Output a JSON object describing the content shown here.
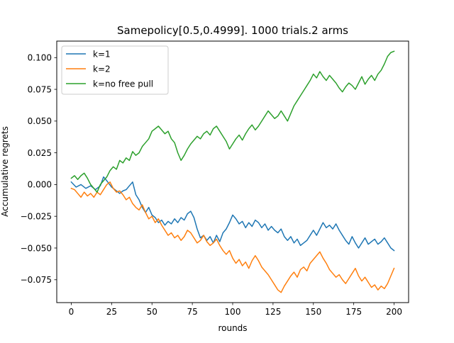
{
  "chart_data": {
    "type": "line",
    "title": "Samepolicy[0.5,0.4999]. 1000 trials.2 arms",
    "xlabel": "rounds",
    "ylabel": "Accumulative regrets",
    "xlim": [
      -9,
      209
    ],
    "ylim": [
      -0.093,
      0.113
    ],
    "xticks": [
      0,
      25,
      50,
      75,
      100,
      125,
      150,
      175,
      200
    ],
    "xtick_labels": [
      "0",
      "25",
      "50",
      "75",
      "100",
      "125",
      "150",
      "175",
      "200"
    ],
    "yticks": [
      -0.075,
      -0.05,
      -0.025,
      0.0,
      0.025,
      0.05,
      0.075,
      0.1
    ],
    "ytick_labels": [
      "−0.075",
      "−0.050",
      "−0.025",
      "0.000",
      "0.025",
      "0.050",
      "0.075",
      "0.100"
    ],
    "grid": false,
    "legend_position": "top-left",
    "series": [
      {
        "name": "k=1",
        "color": "#1f77b4",
        "points": [
          [
            0,
            0.002
          ],
          [
            3,
            -0.002
          ],
          [
            6,
            0.0
          ],
          [
            9,
            -0.003
          ],
          [
            12,
            -0.001
          ],
          [
            15,
            -0.004
          ],
          [
            18,
            -0.001
          ],
          [
            20,
            0.006
          ],
          [
            22,
            0.003
          ],
          [
            25,
            -0.002
          ],
          [
            27,
            -0.004
          ],
          [
            30,
            -0.007
          ],
          [
            32,
            -0.005
          ],
          [
            34,
            -0.004
          ],
          [
            36,
            -0.001
          ],
          [
            38,
            0.002
          ],
          [
            40,
            -0.008
          ],
          [
            42,
            -0.012
          ],
          [
            44,
            -0.018
          ],
          [
            46,
            -0.022
          ],
          [
            48,
            -0.018
          ],
          [
            50,
            -0.024
          ],
          [
            52,
            -0.026
          ],
          [
            54,
            -0.03
          ],
          [
            56,
            -0.028
          ],
          [
            58,
            -0.032
          ],
          [
            60,
            -0.029
          ],
          [
            62,
            -0.031
          ],
          [
            64,
            -0.027
          ],
          [
            66,
            -0.03
          ],
          [
            68,
            -0.026
          ],
          [
            70,
            -0.028
          ],
          [
            72,
            -0.023
          ],
          [
            74,
            -0.021
          ],
          [
            76,
            -0.026
          ],
          [
            78,
            -0.035
          ],
          [
            80,
            -0.042
          ],
          [
            82,
            -0.04
          ],
          [
            84,
            -0.044
          ],
          [
            86,
            -0.041
          ],
          [
            88,
            -0.046
          ],
          [
            90,
            -0.04
          ],
          [
            92,
            -0.045
          ],
          [
            94,
            -0.038
          ],
          [
            96,
            -0.035
          ],
          [
            98,
            -0.03
          ],
          [
            100,
            -0.024
          ],
          [
            102,
            -0.027
          ],
          [
            104,
            -0.031
          ],
          [
            106,
            -0.029
          ],
          [
            108,
            -0.034
          ],
          [
            110,
            -0.03
          ],
          [
            112,
            -0.033
          ],
          [
            114,
            -0.028
          ],
          [
            116,
            -0.03
          ],
          [
            118,
            -0.034
          ],
          [
            120,
            -0.031
          ],
          [
            122,
            -0.036
          ],
          [
            124,
            -0.033
          ],
          [
            126,
            -0.036
          ],
          [
            128,
            -0.038
          ],
          [
            130,
            -0.035
          ],
          [
            132,
            -0.041
          ],
          [
            134,
            -0.044
          ],
          [
            136,
            -0.041
          ],
          [
            138,
            -0.046
          ],
          [
            140,
            -0.043
          ],
          [
            142,
            -0.048
          ],
          [
            144,
            -0.046
          ],
          [
            146,
            -0.044
          ],
          [
            148,
            -0.04
          ],
          [
            150,
            -0.036
          ],
          [
            152,
            -0.04
          ],
          [
            154,
            -0.035
          ],
          [
            156,
            -0.03
          ],
          [
            158,
            -0.034
          ],
          [
            160,
            -0.032
          ],
          [
            162,
            -0.035
          ],
          [
            164,
            -0.031
          ],
          [
            166,
            -0.036
          ],
          [
            168,
            -0.04
          ],
          [
            170,
            -0.044
          ],
          [
            172,
            -0.047
          ],
          [
            174,
            -0.041
          ],
          [
            176,
            -0.046
          ],
          [
            178,
            -0.05
          ],
          [
            180,
            -0.046
          ],
          [
            182,
            -0.042
          ],
          [
            184,
            -0.047
          ],
          [
            186,
            -0.045
          ],
          [
            188,
            -0.043
          ],
          [
            190,
            -0.047
          ],
          [
            192,
            -0.045
          ],
          [
            194,
            -0.042
          ],
          [
            196,
            -0.046
          ],
          [
            198,
            -0.05
          ],
          [
            200,
            -0.052
          ]
        ]
      },
      {
        "name": "k=2",
        "color": "#ff7f0e",
        "points": [
          [
            0,
            -0.003
          ],
          [
            2,
            -0.004
          ],
          [
            4,
            -0.007
          ],
          [
            6,
            -0.01
          ],
          [
            8,
            -0.006
          ],
          [
            10,
            -0.009
          ],
          [
            12,
            -0.007
          ],
          [
            14,
            -0.01
          ],
          [
            16,
            -0.006
          ],
          [
            18,
            -0.008
          ],
          [
            20,
            -0.004
          ],
          [
            22,
            0.0
          ],
          [
            24,
            0.002
          ],
          [
            26,
            -0.003
          ],
          [
            28,
            -0.006
          ],
          [
            30,
            -0.005
          ],
          [
            32,
            -0.008
          ],
          [
            34,
            -0.012
          ],
          [
            36,
            -0.01
          ],
          [
            38,
            -0.015
          ],
          [
            40,
            -0.018
          ],
          [
            42,
            -0.02
          ],
          [
            44,
            -0.016
          ],
          [
            46,
            -0.022
          ],
          [
            48,
            -0.027
          ],
          [
            50,
            -0.025
          ],
          [
            52,
            -0.03
          ],
          [
            54,
            -0.027
          ],
          [
            56,
            -0.032
          ],
          [
            58,
            -0.036
          ],
          [
            60,
            -0.04
          ],
          [
            62,
            -0.038
          ],
          [
            64,
            -0.042
          ],
          [
            66,
            -0.04
          ],
          [
            68,
            -0.044
          ],
          [
            70,
            -0.041
          ],
          [
            72,
            -0.036
          ],
          [
            74,
            -0.038
          ],
          [
            76,
            -0.042
          ],
          [
            78,
            -0.046
          ],
          [
            80,
            -0.044
          ],
          [
            82,
            -0.04
          ],
          [
            84,
            -0.045
          ],
          [
            86,
            -0.048
          ],
          [
            88,
            -0.046
          ],
          [
            90,
            -0.043
          ],
          [
            92,
            -0.048
          ],
          [
            94,
            -0.052
          ],
          [
            96,
            -0.055
          ],
          [
            98,
            -0.052
          ],
          [
            100,
            -0.058
          ],
          [
            102,
            -0.062
          ],
          [
            104,
            -0.059
          ],
          [
            106,
            -0.064
          ],
          [
            108,
            -0.061
          ],
          [
            110,
            -0.066
          ],
          [
            112,
            -0.06
          ],
          [
            114,
            -0.056
          ],
          [
            116,
            -0.06
          ],
          [
            118,
            -0.065
          ],
          [
            120,
            -0.068
          ],
          [
            122,
            -0.071
          ],
          [
            124,
            -0.075
          ],
          [
            126,
            -0.079
          ],
          [
            128,
            -0.083
          ],
          [
            130,
            -0.085
          ],
          [
            132,
            -0.08
          ],
          [
            134,
            -0.076
          ],
          [
            136,
            -0.072
          ],
          [
            138,
            -0.069
          ],
          [
            140,
            -0.073
          ],
          [
            142,
            -0.067
          ],
          [
            144,
            -0.065
          ],
          [
            146,
            -0.068
          ],
          [
            148,
            -0.062
          ],
          [
            150,
            -0.059
          ],
          [
            152,
            -0.056
          ],
          [
            154,
            -0.053
          ],
          [
            156,
            -0.058
          ],
          [
            158,
            -0.062
          ],
          [
            160,
            -0.067
          ],
          [
            162,
            -0.07
          ],
          [
            164,
            -0.073
          ],
          [
            166,
            -0.071
          ],
          [
            168,
            -0.075
          ],
          [
            170,
            -0.078
          ],
          [
            172,
            -0.074
          ],
          [
            174,
            -0.07
          ],
          [
            176,
            -0.066
          ],
          [
            178,
            -0.072
          ],
          [
            180,
            -0.076
          ],
          [
            182,
            -0.073
          ],
          [
            184,
            -0.077
          ],
          [
            186,
            -0.081
          ],
          [
            188,
            -0.079
          ],
          [
            190,
            -0.083
          ],
          [
            192,
            -0.08
          ],
          [
            194,
            -0.082
          ],
          [
            196,
            -0.078
          ],
          [
            198,
            -0.072
          ],
          [
            200,
            -0.066
          ]
        ]
      },
      {
        "name": "k=no free pull",
        "color": "#2ca02c",
        "points": [
          [
            0,
            0.005
          ],
          [
            2,
            0.007
          ],
          [
            4,
            0.004
          ],
          [
            6,
            0.007
          ],
          [
            8,
            0.009
          ],
          [
            10,
            0.005
          ],
          [
            12,
            0.0
          ],
          [
            14,
            -0.003
          ],
          [
            16,
            -0.006
          ],
          [
            18,
            0.0
          ],
          [
            20,
            0.003
          ],
          [
            22,
            0.006
          ],
          [
            24,
            0.011
          ],
          [
            26,
            0.014
          ],
          [
            28,
            0.012
          ],
          [
            30,
            0.019
          ],
          [
            32,
            0.017
          ],
          [
            34,
            0.021
          ],
          [
            36,
            0.019
          ],
          [
            38,
            0.026
          ],
          [
            40,
            0.023
          ],
          [
            42,
            0.025
          ],
          [
            44,
            0.03
          ],
          [
            46,
            0.033
          ],
          [
            48,
            0.036
          ],
          [
            50,
            0.042
          ],
          [
            52,
            0.044
          ],
          [
            54,
            0.046
          ],
          [
            56,
            0.043
          ],
          [
            58,
            0.04
          ],
          [
            60,
            0.042
          ],
          [
            62,
            0.036
          ],
          [
            64,
            0.033
          ],
          [
            66,
            0.025
          ],
          [
            68,
            0.019
          ],
          [
            70,
            0.023
          ],
          [
            72,
            0.028
          ],
          [
            74,
            0.032
          ],
          [
            76,
            0.035
          ],
          [
            78,
            0.038
          ],
          [
            80,
            0.036
          ],
          [
            82,
            0.04
          ],
          [
            84,
            0.042
          ],
          [
            86,
            0.039
          ],
          [
            88,
            0.044
          ],
          [
            90,
            0.046
          ],
          [
            92,
            0.042
          ],
          [
            94,
            0.038
          ],
          [
            96,
            0.034
          ],
          [
            98,
            0.028
          ],
          [
            100,
            0.032
          ],
          [
            102,
            0.036
          ],
          [
            104,
            0.039
          ],
          [
            106,
            0.035
          ],
          [
            108,
            0.04
          ],
          [
            110,
            0.044
          ],
          [
            112,
            0.047
          ],
          [
            114,
            0.043
          ],
          [
            116,
            0.046
          ],
          [
            118,
            0.05
          ],
          [
            120,
            0.054
          ],
          [
            122,
            0.058
          ],
          [
            124,
            0.055
          ],
          [
            126,
            0.052
          ],
          [
            128,
            0.054
          ],
          [
            130,
            0.058
          ],
          [
            132,
            0.054
          ],
          [
            134,
            0.05
          ],
          [
            136,
            0.056
          ],
          [
            138,
            0.062
          ],
          [
            140,
            0.066
          ],
          [
            142,
            0.07
          ],
          [
            144,
            0.074
          ],
          [
            146,
            0.078
          ],
          [
            148,
            0.082
          ],
          [
            150,
            0.087
          ],
          [
            152,
            0.084
          ],
          [
            154,
            0.089
          ],
          [
            156,
            0.085
          ],
          [
            158,
            0.082
          ],
          [
            160,
            0.086
          ],
          [
            162,
            0.083
          ],
          [
            164,
            0.08
          ],
          [
            166,
            0.076
          ],
          [
            168,
            0.073
          ],
          [
            170,
            0.077
          ],
          [
            172,
            0.08
          ],
          [
            174,
            0.078
          ],
          [
            176,
            0.075
          ],
          [
            178,
            0.08
          ],
          [
            180,
            0.085
          ],
          [
            182,
            0.079
          ],
          [
            184,
            0.083
          ],
          [
            186,
            0.086
          ],
          [
            188,
            0.082
          ],
          [
            190,
            0.087
          ],
          [
            192,
            0.09
          ],
          [
            194,
            0.095
          ],
          [
            196,
            0.101
          ],
          [
            198,
            0.104
          ],
          [
            200,
            0.105
          ]
        ]
      }
    ]
  }
}
